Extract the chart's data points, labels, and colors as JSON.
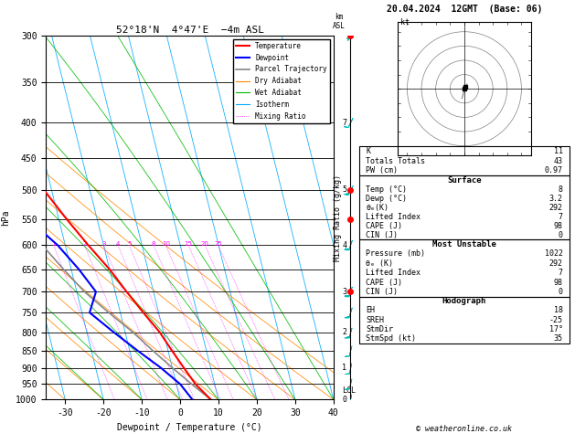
{
  "title_left": "52°18'N  4°47'E  −4m ASL",
  "title_right": "20.04.2024  12GMT  (Base: 06)",
  "xlabel": "Dewpoint / Temperature (°C)",
  "ylabel_left": "hPa",
  "pressure_levels": [
    300,
    350,
    400,
    450,
    500,
    550,
    600,
    650,
    700,
    750,
    800,
    850,
    900,
    950,
    1000
  ],
  "temp_color": "#ff0000",
  "dewp_color": "#0000ff",
  "parcel_color": "#888888",
  "dry_adiabat_color": "#ff8800",
  "wet_adiabat_color": "#00bb00",
  "isotherm_color": "#00aaff",
  "mixing_ratio_color": "#ff00ff",
  "background": "#ffffff",
  "x_min": -35,
  "x_max": 40,
  "skew_slope": 1.0,
  "stats": {
    "K": 11,
    "Totals_Totals": 43,
    "PW_cm": "0.97",
    "Surf_Temp": 8,
    "Surf_Dewp": "3.2",
    "Surf_theta_e": 292,
    "Surf_Lifted_Index": 7,
    "Surf_CAPE": 98,
    "Surf_CIN": 0,
    "MU_Pressure": 1022,
    "MU_theta_e": 292,
    "MU_Lifted_Index": 7,
    "MU_CAPE": 98,
    "MU_CIN": 0,
    "EH": 18,
    "SREH": -25,
    "StmDir": "17°",
    "StmSpd": 35
  },
  "temp_data": {
    "pressure": [
      1000,
      950,
      900,
      850,
      800,
      750,
      700,
      650,
      600,
      550,
      500,
      450,
      400,
      350,
      300
    ],
    "temp": [
      8,
      5,
      3,
      1,
      -1,
      -4,
      -7,
      -10,
      -14,
      -18,
      -22,
      -27,
      -33,
      -40,
      -48
    ]
  },
  "dewp_data": {
    "pressure": [
      1000,
      950,
      900,
      850,
      800,
      750,
      700,
      650,
      600,
      550,
      500,
      450,
      400,
      350,
      300
    ],
    "dewp": [
      3.2,
      1,
      -3,
      -8,
      -13,
      -18,
      -15,
      -18,
      -22,
      -28,
      -30,
      -35,
      -37,
      -42,
      -50
    ]
  },
  "parcel_data": {
    "pressure": [
      1000,
      950,
      900,
      850,
      800,
      750,
      700,
      650,
      600,
      550,
      500,
      450,
      400,
      350,
      300
    ],
    "temp": [
      8,
      4,
      0,
      -4,
      -8,
      -13,
      -18,
      -22,
      -26,
      -30,
      -35,
      -40,
      -46,
      -53,
      -60
    ]
  },
  "mixing_ratio_values": [
    1,
    2,
    3,
    4,
    5,
    8,
    10,
    15,
    20,
    25
  ],
  "km_ticks_p": [
    400,
    500,
    600,
    700,
    800,
    900,
    1000
  ],
  "km_ticks_v": [
    7,
    5,
    4,
    3,
    2,
    1,
    0
  ],
  "lcl_pressure": 970,
  "wind_col_markers_p": [
    300,
    500,
    550,
    700
  ],
  "wind_barb_p": [
    1000,
    950,
    900,
    850,
    800,
    750,
    700,
    600,
    500,
    400,
    300
  ],
  "wind_barb_u": [
    1,
    2,
    2,
    3,
    4,
    5,
    6,
    7,
    8,
    5,
    3
  ],
  "wind_barb_v": [
    5,
    8,
    10,
    12,
    14,
    16,
    18,
    20,
    15,
    10,
    5
  ]
}
